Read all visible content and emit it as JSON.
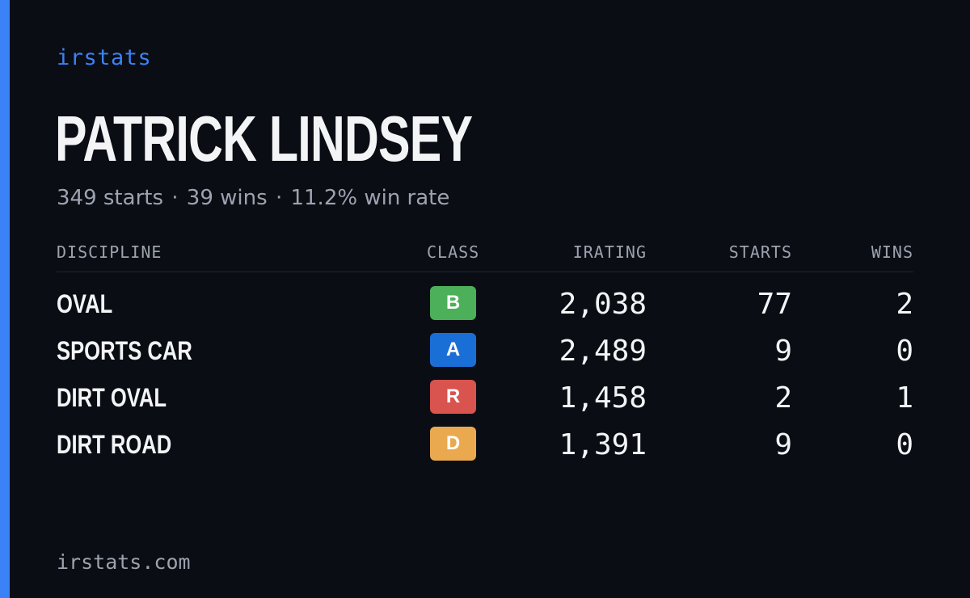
{
  "brand": "irstats",
  "driver": {
    "name": "PATRICK LINDSEY",
    "starts_text": "349 starts",
    "wins_text": "39 wins",
    "winrate_text": "11.2% win rate",
    "separator": "·"
  },
  "table": {
    "headers": {
      "discipline": "DISCIPLINE",
      "class": "CLASS",
      "irating": "IRATING",
      "starts": "STARTS",
      "wins": "WINS"
    },
    "rows": [
      {
        "discipline": "OVAL",
        "class": "B",
        "class_color": "#4caf5a",
        "irating": "2,038",
        "starts": "77",
        "wins": "2"
      },
      {
        "discipline": "SPORTS CAR",
        "class": "A",
        "class_color": "#1a6fd6",
        "irating": "2,489",
        "starts": "9",
        "wins": "0"
      },
      {
        "discipline": "DIRT OVAL",
        "class": "R",
        "class_color": "#d9534f",
        "irating": "1,458",
        "starts": "2",
        "wins": "1"
      },
      {
        "discipline": "DIRT ROAD",
        "class": "D",
        "class_color": "#eba94f",
        "irating": "1,391",
        "starts": "9",
        "wins": "0"
      }
    ]
  },
  "footer": "irstats.com",
  "colors": {
    "accent": "#3b82f6",
    "background": "#0a0d14",
    "muted": "#9ca3af",
    "text": "#f3f4f6"
  }
}
